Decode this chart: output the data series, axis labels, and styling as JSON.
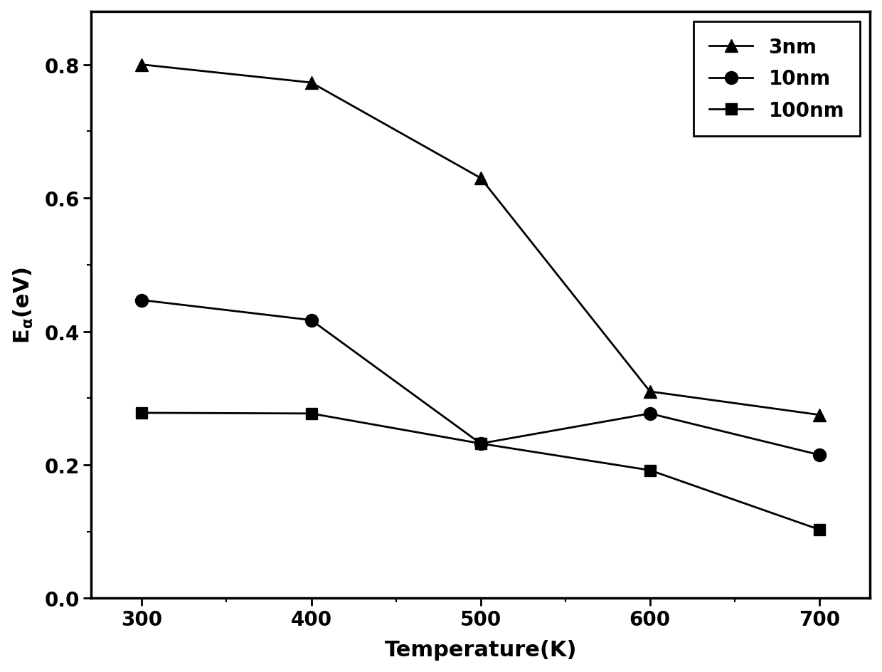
{
  "x": [
    300,
    400,
    500,
    600,
    700
  ],
  "series_order": [
    "3nm",
    "10nm",
    "100nm"
  ],
  "series": {
    "3nm": {
      "y": [
        0.8,
        0.773,
        0.63,
        0.31,
        0.275
      ],
      "marker": "^",
      "label": "3nm",
      "markersize": 13,
      "linewidth": 2.0
    },
    "10nm": {
      "y": [
        0.447,
        0.417,
        0.232,
        0.277,
        0.215
      ],
      "marker": "o",
      "label": "10nm",
      "markersize": 13,
      "linewidth": 2.0
    },
    "100nm": {
      "y": [
        0.278,
        0.277,
        0.232,
        0.192,
        0.103
      ],
      "marker": "s",
      "label": "100nm",
      "markersize": 11,
      "linewidth": 2.0
    }
  },
  "xlabel": "Temperature(K)",
  "xlim": [
    270,
    730
  ],
  "ylim": [
    0.0,
    0.88
  ],
  "xticks": [
    300,
    400,
    500,
    600,
    700
  ],
  "yticks": [
    0.0,
    0.2,
    0.4,
    0.6,
    0.8
  ],
  "color": "#000000",
  "legend_loc": "upper right",
  "legend_fontsize": 20,
  "axis_label_fontsize": 22,
  "tick_fontsize": 20,
  "background_color": "#ffffff",
  "line_color": "black",
  "spine_linewidth": 2.5
}
